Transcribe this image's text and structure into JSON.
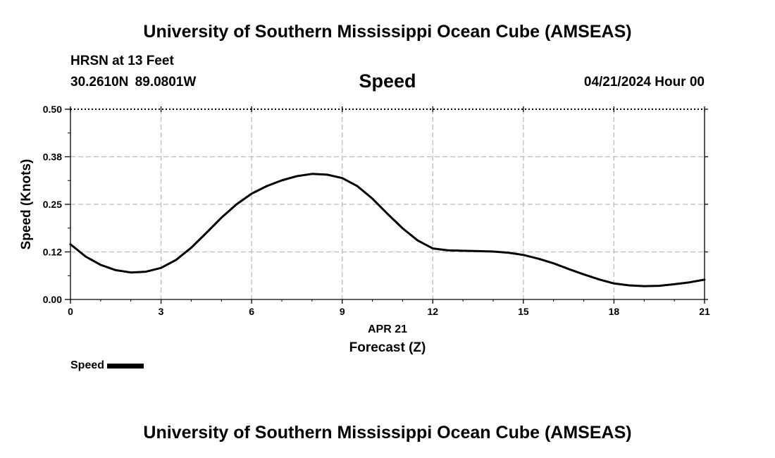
{
  "header": {
    "title": "University of Southern Mississippi Ocean Cube (AMSEAS)",
    "station": "HRSN at 13 Feet",
    "coordinates": "30.2610N 89.0801W",
    "datetime": "04/21/2024 Hour 00"
  },
  "footer": {
    "title": "University of Southern Mississippi Ocean Cube (AMSEAS)"
  },
  "chart_data": {
    "type": "line",
    "title": "Speed",
    "xlabel": "Forecast (Z)",
    "ylabel": "Speed (Knots)",
    "date_label": "APR 21",
    "xlim": [
      0,
      21
    ],
    "ylim": [
      0,
      0.5
    ],
    "x_ticks": [
      0,
      3,
      6,
      9,
      12,
      15,
      18,
      21
    ],
    "x_tick_labels": [
      "0",
      "3",
      "6",
      "9",
      "12",
      "15",
      "18",
      "21"
    ],
    "y_ticks": [
      0,
      0.125,
      0.25,
      0.375,
      0.5
    ],
    "y_tick_labels": [
      "0.00",
      "0.12",
      "0.25",
      "0.38",
      "0.50"
    ],
    "grid": true,
    "legend_position": "bottom-left",
    "series": [
      {
        "name": "Speed",
        "color": "#000000",
        "x": [
          0,
          0.5,
          1,
          1.5,
          2,
          2.5,
          3,
          3.5,
          4,
          4.5,
          5,
          5.5,
          6,
          6.5,
          7,
          7.5,
          8,
          8.5,
          9,
          9.5,
          10,
          10.5,
          11,
          11.5,
          12,
          12.5,
          13,
          13.5,
          14,
          14.5,
          15,
          15.5,
          16,
          16.5,
          17,
          17.5,
          18,
          18.5,
          19,
          19.5,
          20,
          20.5,
          21
        ],
        "y": [
          0.145,
          0.113,
          0.091,
          0.077,
          0.071,
          0.073,
          0.083,
          0.104,
          0.136,
          0.175,
          0.215,
          0.25,
          0.278,
          0.298,
          0.313,
          0.324,
          0.33,
          0.328,
          0.319,
          0.298,
          0.265,
          0.225,
          0.187,
          0.155,
          0.134,
          0.129,
          0.128,
          0.127,
          0.126,
          0.123,
          0.117,
          0.107,
          0.095,
          0.08,
          0.066,
          0.053,
          0.042,
          0.037,
          0.035,
          0.036,
          0.04,
          0.045,
          0.052
        ]
      }
    ]
  },
  "legend": {
    "label": "Speed"
  }
}
